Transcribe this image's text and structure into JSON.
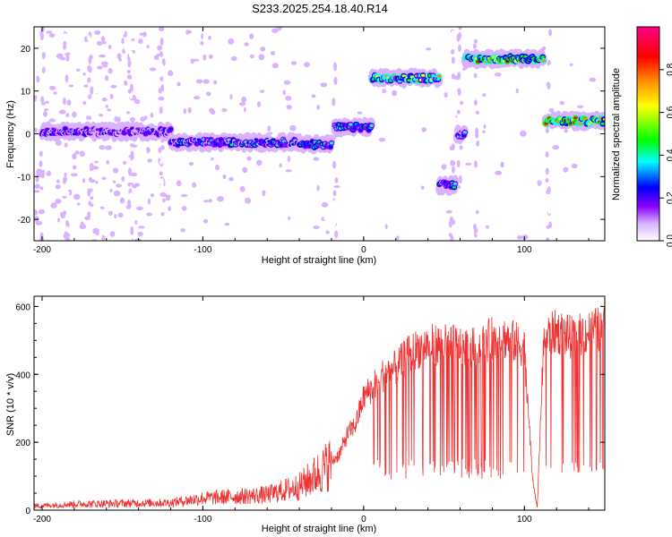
{
  "title": "S233.2025.254.18.40.R14",
  "chart_data": [
    {
      "type": "heatmap",
      "xlabel": "Height of straight line (km)",
      "ylabel": "Frequency (Hz)",
      "xlim": [
        -205,
        150
      ],
      "ylim": [
        -25,
        25
      ],
      "xticks": [
        -200,
        -100,
        0,
        100
      ],
      "yticks": [
        -20,
        -10,
        0,
        10,
        20
      ],
      "colorbar": {
        "label": "Normalized spectral amplitude",
        "range": [
          0.0,
          1.0
        ],
        "ticks": [
          "0.0",
          "0.2",
          "0.4",
          "0.6",
          "0.8"
        ],
        "colors": [
          "#ffffff",
          "#cc99ff",
          "#8800ff",
          "#0000ff",
          "#00ffff",
          "#00ff00",
          "#ffff00",
          "#ff8800",
          "#ff0000",
          "#ff0088"
        ]
      },
      "ridge": [
        {
          "x_start": -200,
          "x_end": -120,
          "freq": 0.5,
          "amp": 0.35
        },
        {
          "x_start": -120,
          "x_end": -40,
          "freq": -2,
          "amp": 0.45
        },
        {
          "x_start": -40,
          "x_end": -20,
          "freq": -2.5,
          "amp": 0.55
        },
        {
          "x_start": -18,
          "x_end": 5,
          "freq": 1.5,
          "amp": 0.5
        },
        {
          "x_start": 5,
          "x_end": 47,
          "freq": 13,
          "amp": 0.75
        },
        {
          "x_start": 47,
          "x_end": 57,
          "freq": -12,
          "amp": 0.5
        },
        {
          "x_start": 58,
          "x_end": 63,
          "freq": 0,
          "amp": 0.4
        },
        {
          "x_start": 63,
          "x_end": 112,
          "freq": 17.5,
          "amp": 0.85
        },
        {
          "x_start": 113,
          "x_end": 150,
          "freq": 3,
          "amp": 0.9
        }
      ]
    },
    {
      "type": "line",
      "xlabel": "Height of straight line (km)",
      "ylabel": "SNR (10 * v/v)",
      "xlim": [
        -205,
        150
      ],
      "ylim": [
        0,
        630
      ],
      "xticks": [
        -200,
        -100,
        0,
        100
      ],
      "yticks": [
        0,
        200,
        400,
        600
      ],
      "color": "#ee3333",
      "envelope": {
        "x": [
          -205,
          -180,
          -150,
          -120,
          -100,
          -80,
          -60,
          -40,
          -25,
          -15,
          -10,
          -5,
          0,
          10,
          20,
          30,
          40,
          50,
          60,
          70,
          80,
          90,
          100,
          105,
          108,
          112,
          120,
          130,
          140,
          150
        ],
        "y": [
          12,
          18,
          20,
          22,
          35,
          40,
          45,
          70,
          120,
          170,
          230,
          260,
          340,
          400,
          430,
          480,
          500,
          500,
          495,
          490,
          520,
          520,
          490,
          100,
          5,
          520,
          540,
          520,
          540,
          550
        ]
      }
    }
  ]
}
